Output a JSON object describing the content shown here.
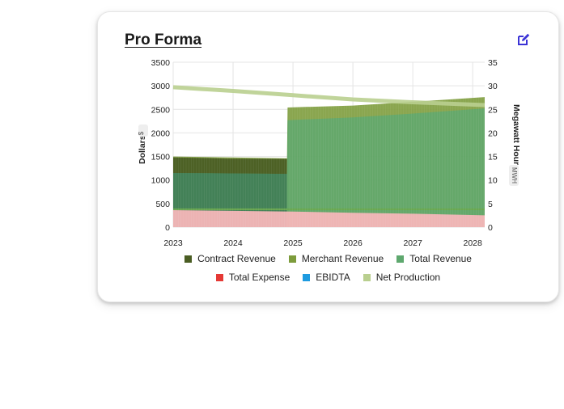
{
  "card": {
    "title": "Pro Forma",
    "edit_icon": "edit-icon"
  },
  "chart_data": {
    "type": "area",
    "title": "Pro Forma",
    "x": [
      "2023",
      "2024",
      "2025",
      "2026",
      "2027",
      "2028"
    ],
    "xlabel": "",
    "ylabel": "Dollars",
    "ylabel_unit": "$",
    "y2label": "Megawatt Hour",
    "y2label_unit": "MWH",
    "ylim": [
      0,
      3500
    ],
    "y2lim": [
      0,
      35
    ],
    "yticks": [
      0,
      500,
      1000,
      1500,
      2000,
      2500,
      3000,
      3500
    ],
    "y2ticks": [
      0,
      5,
      10,
      15,
      20,
      25,
      30,
      35
    ],
    "grid": true,
    "legend_position": "bottom",
    "stack_order_bottom_to_top": [
      "Total Revenue",
      "Contract Revenue",
      "Merchant Revenue"
    ],
    "series": [
      {
        "name": "Contract Revenue",
        "color": "#4a5d23",
        "points": [
          [
            2023.0,
            1480
          ],
          [
            2023.5,
            1470
          ],
          [
            2023.9,
            1455
          ],
          [
            2024.9,
            1450
          ],
          [
            2024.91,
            0
          ],
          [
            2028.2,
            0
          ]
        ]
      },
      {
        "name": "Merchant Revenue",
        "color": "#7d9c3c",
        "points": [
          [
            2023.0,
            1500
          ],
          [
            2024.9,
            1460
          ],
          [
            2024.91,
            2540
          ],
          [
            2026.0,
            2580
          ],
          [
            2027.0,
            2660
          ],
          [
            2028.2,
            2760
          ]
        ]
      },
      {
        "name": "Total Revenue",
        "color": "#5ea86e",
        "points": [
          [
            2023.0,
            1150
          ],
          [
            2024.9,
            1130
          ],
          [
            2024.91,
            2270
          ],
          [
            2026.0,
            2330
          ],
          [
            2027.0,
            2410
          ],
          [
            2028.2,
            2520
          ]
        ]
      },
      {
        "name": "Total Expense",
        "color": "#e53935",
        "points": [
          [
            2023.0,
            360
          ],
          [
            2024.0,
            345
          ],
          [
            2025.0,
            330
          ],
          [
            2026.0,
            305
          ],
          [
            2027.0,
            285
          ],
          [
            2028.2,
            250
          ]
        ]
      },
      {
        "name": "EBIDTA",
        "color": "#1e9be0",
        "points": []
      },
      {
        "name": "Net Production",
        "color": "#b9cf8f",
        "points": [
          [
            2023.0,
            29.7
          ],
          [
            2024.0,
            28.9
          ],
          [
            2025.0,
            28.0
          ],
          [
            2026.0,
            27.1
          ],
          [
            2027.0,
            26.5
          ],
          [
            2028.2,
            25.9
          ]
        ]
      }
    ]
  },
  "legend": {
    "row1": [
      {
        "label": "Contract Revenue",
        "color": "#4a5d23"
      },
      {
        "label": "Merchant Revenue",
        "color": "#7d9c3c"
      },
      {
        "label": "Total Revenue",
        "color": "#5ea86e"
      }
    ],
    "row2": [
      {
        "label": "Total Expense",
        "color": "#e53935"
      },
      {
        "label": "EBIDTA",
        "color": "#1e9be0"
      },
      {
        "label": "Net Production",
        "color": "#b9cf8f"
      }
    ]
  }
}
